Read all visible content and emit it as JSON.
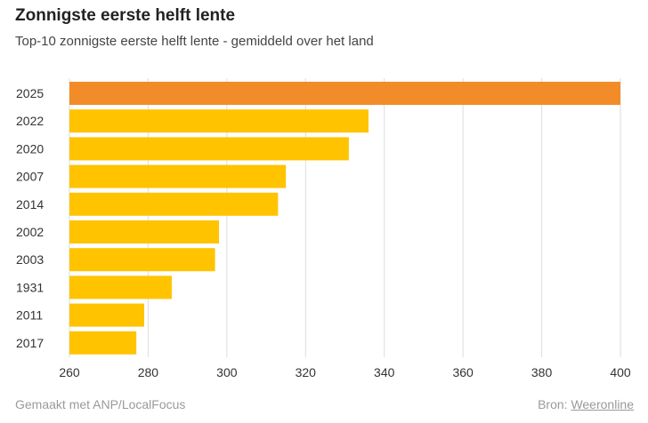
{
  "header": {
    "title": "Zonnigste eerste helft lente",
    "subtitle": "Top-10 zonnigste eerste helft lente - gemiddeld over het land"
  },
  "footer": {
    "made_with": "Gemaakt met ANP/LocalFocus",
    "source_label": "Bron:",
    "source_link": "Weeronline"
  },
  "colors": {
    "highlight": "#F28C28",
    "bar": "#FFC300",
    "grid": "#DDDDDD",
    "text": "#333333"
  },
  "chart_data": {
    "type": "bar",
    "orientation": "horizontal",
    "title": "Zonnigste eerste helft lente",
    "subtitle": "Top-10 zonnigste eerste helft lente - gemiddeld over het land",
    "categories": [
      "2025",
      "2022",
      "2020",
      "2007",
      "2014",
      "2002",
      "2003",
      "1931",
      "2011",
      "2017"
    ],
    "values": [
      400,
      336,
      331,
      315,
      313,
      298,
      297,
      286,
      279,
      277
    ],
    "highlight_category": "2025",
    "xlim": [
      260,
      400
    ],
    "xticks": [
      260,
      280,
      300,
      320,
      340,
      360,
      380,
      400
    ],
    "grid": true,
    "legend": "none"
  }
}
